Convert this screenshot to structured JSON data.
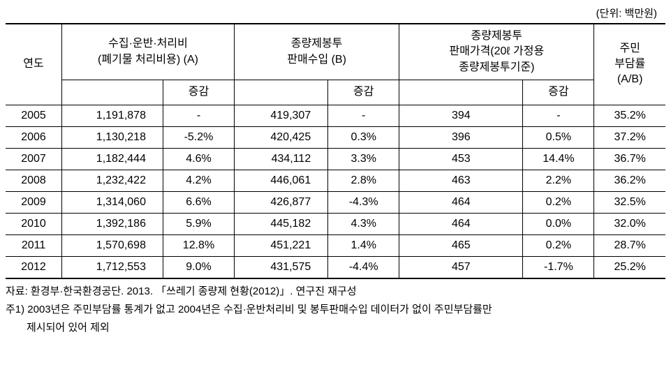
{
  "unit_label": "(단위: 백만원)",
  "headers": {
    "year": "연도",
    "col_a_title": "수집·운반·처리비\n(폐기물 처리비용) (A)",
    "col_b_title": "종량제봉투\n판매수입 (B)",
    "col_c_title": "종량제봉투\n판매가격(20ℓ 가정용\n종량제봉투기준)",
    "ratio": "주민\n부담률\n(A/B)",
    "change": "증감"
  },
  "rows": [
    {
      "year": "2005",
      "a_val": "1,191,878",
      "a_chg": "-",
      "b_val": "419,307",
      "b_chg": "-",
      "c_val": "394",
      "c_chg": "-",
      "ratio": "35.2%"
    },
    {
      "year": "2006",
      "a_val": "1,130,218",
      "a_chg": "-5.2%",
      "b_val": "420,425",
      "b_chg": "0.3%",
      "c_val": "396",
      "c_chg": "0.5%",
      "ratio": "37.2%"
    },
    {
      "year": "2007",
      "a_val": "1,182,444",
      "a_chg": "4.6%",
      "b_val": "434,112",
      "b_chg": "3.3%",
      "c_val": "453",
      "c_chg": "14.4%",
      "ratio": "36.7%"
    },
    {
      "year": "2008",
      "a_val": "1,232,422",
      "a_chg": "4.2%",
      "b_val": "446,061",
      "b_chg": "2.8%",
      "c_val": "463",
      "c_chg": "2.2%",
      "ratio": "36.2%"
    },
    {
      "year": "2009",
      "a_val": "1,314,060",
      "a_chg": "6.6%",
      "b_val": "426,877",
      "b_chg": "-4.3%",
      "c_val": "464",
      "c_chg": "0.2%",
      "ratio": "32.5%"
    },
    {
      "year": "2010",
      "a_val": "1,392,186",
      "a_chg": "5.9%",
      "b_val": "445,182",
      "b_chg": "4.3%",
      "c_val": "464",
      "c_chg": "0.0%",
      "ratio": "32.0%"
    },
    {
      "year": "2011",
      "a_val": "1,570,698",
      "a_chg": "12.8%",
      "b_val": "451,221",
      "b_chg": "1.4%",
      "c_val": "465",
      "c_chg": "0.2%",
      "ratio": "28.7%"
    },
    {
      "year": "2012",
      "a_val": "1,712,553",
      "a_chg": "9.0%",
      "b_val": "431,575",
      "b_chg": "-4.4%",
      "c_val": "457",
      "c_chg": "-1.7%",
      "ratio": "25.2%"
    }
  ],
  "footnotes": {
    "source": "자료: 환경부·한국환경공단. 2013. 「쓰레기 종량제 현황(2012)」. 연구진 재구성",
    "note1_line1": "주1) 2003년은 주민부담률 통계가 없고 2004년은 수집·운반처리비 및 봉투판매수입 데이터가 없이 주민부담률만",
    "note1_line2": "제시되어 있어 제외"
  },
  "styling": {
    "font_family": "Malgun Gothic",
    "border_color": "#000000",
    "background_color": "#ffffff",
    "text_color": "#000000",
    "header_font_size": 16,
    "body_font_size": 16,
    "footnote_font_size": 15,
    "top_border_width": 2,
    "bottom_border_width": 2,
    "inner_border_width": 1,
    "col_widths": {
      "year": 75,
      "a_val": 135,
      "a_chg": 95,
      "b_val": 125,
      "b_chg": 95,
      "c_val": 165,
      "c_chg": 95,
      "ratio": 95
    }
  }
}
